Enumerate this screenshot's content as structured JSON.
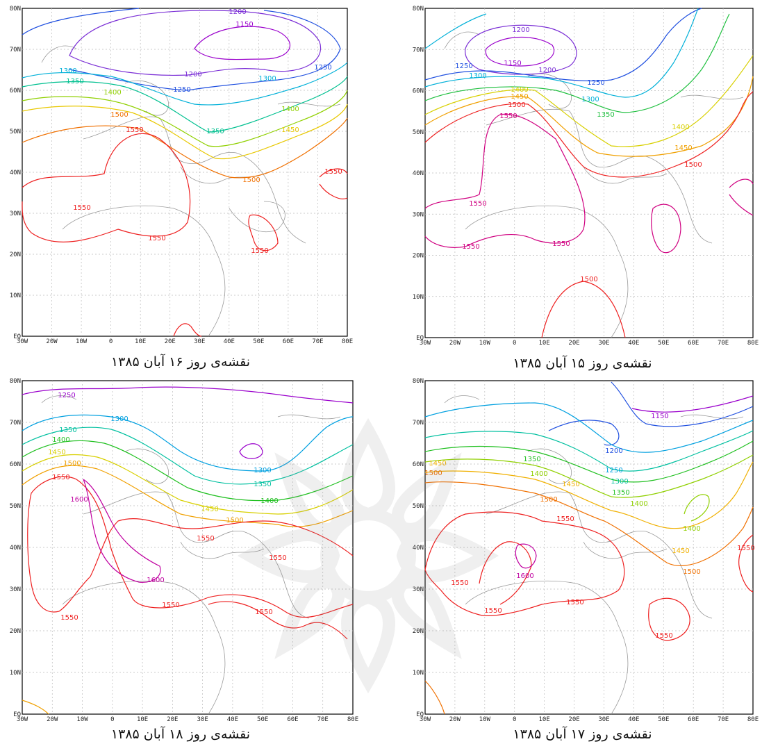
{
  "map_frame": {
    "lon_ticks": [
      "30W",
      "20W",
      "10W",
      "0",
      "10E",
      "20E",
      "30E",
      "40E",
      "50E",
      "60E",
      "70E",
      "80E"
    ],
    "lat_ticks": [
      "EQ",
      "10N",
      "20N",
      "30N",
      "40N",
      "50N",
      "60N",
      "70N",
      "80N"
    ]
  },
  "panels": [
    {
      "id": "p16",
      "caption": "نقشه‌ی روز ۱۶ آبان ۱۳۸۵",
      "contours": [
        {
          "level": "1150",
          "color": "#9a00cc",
          "labels": [
            "1150"
          ]
        },
        {
          "level": "1200",
          "color": "#7b2fd6",
          "labels": [
            "1200",
            "1200"
          ]
        },
        {
          "level": "1250",
          "color": "#2050e0",
          "labels": [
            "1250",
            "1250"
          ]
        },
        {
          "level": "1300",
          "color": "#00b0d8",
          "labels": [
            "1300",
            "1300"
          ]
        },
        {
          "level": "1350",
          "color": "#00c090",
          "labels": [
            "1350",
            "1350"
          ]
        },
        {
          "level": "1400",
          "color": "#90d000",
          "labels": [
            "1400",
            "1400"
          ]
        },
        {
          "level": "1450",
          "color": "#e8c800",
          "labels": [
            "1450"
          ]
        },
        {
          "level": "1500",
          "color": "#f07000",
          "labels": [
            "1500",
            "1500"
          ]
        },
        {
          "level": "1550",
          "color": "#ee2020",
          "labels": [
            "1550",
            "1550",
            "1550",
            "1550",
            "1550"
          ]
        }
      ]
    },
    {
      "id": "p15",
      "caption": "نقشه‌ی روز ۱۵ آبان ۱۳۸۵",
      "contours": [
        {
          "level": "1150",
          "color": "#9a00cc",
          "labels": [
            "1150"
          ]
        },
        {
          "level": "1200",
          "color": "#7b2fd6",
          "labels": [
            "1200",
            "1200"
          ]
        },
        {
          "level": "1250",
          "color": "#2050e0",
          "labels": [
            "1250",
            "1250"
          ]
        },
        {
          "level": "1300",
          "color": "#00b0d8",
          "labels": [
            "1300",
            "1300"
          ]
        },
        {
          "level": "1350",
          "color": "#20c040",
          "labels": [
            "1350"
          ]
        },
        {
          "level": "1400",
          "color": "#d8d000",
          "labels": [
            "1400",
            "1400"
          ]
        },
        {
          "level": "1450",
          "color": "#f0a000",
          "labels": [
            "1450",
            "1450"
          ]
        },
        {
          "level": "1500",
          "color": "#ee2020",
          "labels": [
            "1500",
            "1500",
            "1500"
          ]
        },
        {
          "level": "1550",
          "color": "#d00080",
          "labels": [
            "1550",
            "1550",
            "1550",
            "1550"
          ]
        }
      ]
    },
    {
      "id": "p18",
      "caption": "نقشه‌ی روز ۱۸ آبان ۱۳۸۵",
      "contours": [
        {
          "level": "1250",
          "color": "#9a00cc",
          "labels": [
            "1250"
          ]
        },
        {
          "level": "1300",
          "color": "#00a0e0",
          "labels": [
            "1300",
            "1300"
          ]
        },
        {
          "level": "1350",
          "color": "#00c0a0",
          "labels": [
            "1350",
            "1350"
          ]
        },
        {
          "level": "1400",
          "color": "#20c020",
          "labels": [
            "1400",
            "1400"
          ]
        },
        {
          "level": "1450",
          "color": "#d8d000",
          "labels": [
            "1450",
            "1450"
          ]
        },
        {
          "level": "1500",
          "color": "#f0a000",
          "labels": [
            "1500",
            "1500"
          ]
        },
        {
          "level": "1550",
          "color": "#ee2020",
          "labels": [
            "1550",
            "1550",
            "1550",
            "1550",
            "1550",
            "1550"
          ]
        },
        {
          "level": "1600",
          "color": "#c000a0",
          "labels": [
            "1600",
            "1600"
          ]
        }
      ]
    },
    {
      "id": "p17",
      "caption": "نقشه‌ی روز ۱۷ آبان ۱۳۸۵",
      "contours": [
        {
          "level": "1150",
          "color": "#9a00cc",
          "labels": [
            "1150"
          ]
        },
        {
          "level": "1200",
          "color": "#2050e0",
          "labels": [
            "1200"
          ]
        },
        {
          "level": "1250",
          "color": "#00a0e0",
          "labels": [
            "1250"
          ]
        },
        {
          "level": "1300",
          "color": "#00c0a0",
          "labels": [
            "1300"
          ]
        },
        {
          "level": "1350",
          "color": "#20c020",
          "labels": [
            "1350",
            "1350"
          ]
        },
        {
          "level": "1400",
          "color": "#90d000",
          "labels": [
            "1400",
            "1400",
            "1400"
          ]
        },
        {
          "level": "1450",
          "color": "#f0b000",
          "labels": [
            "1450",
            "1450",
            "1450"
          ]
        },
        {
          "level": "1500",
          "color": "#f07000",
          "labels": [
            "1500",
            "1500",
            "1500"
          ]
        },
        {
          "level": "1550",
          "color": "#ee2020",
          "labels": [
            "1550",
            "1550",
            "1550",
            "1550",
            "1550",
            "1550"
          ]
        },
        {
          "level": "1600",
          "color": "#c000a0",
          "labels": [
            "1600"
          ]
        }
      ]
    }
  ]
}
